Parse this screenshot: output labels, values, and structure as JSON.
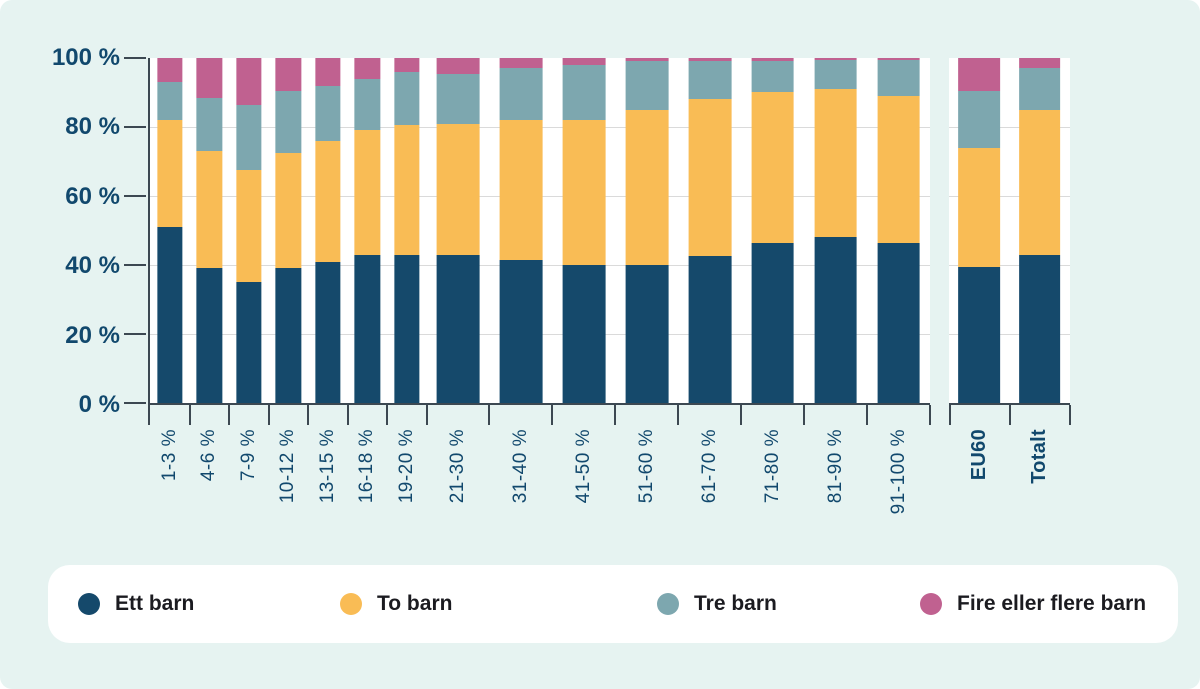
{
  "page": {
    "background_color": "#E6F3F1",
    "plot_background_color": "#FFFFFF"
  },
  "chart_data": {
    "type": "bar",
    "variant": "stacked-100-percent",
    "title": "",
    "xlabel": "",
    "ylabel": "",
    "ylim": [
      0,
      100
    ],
    "grid": "horizontal",
    "legend_position": "bottom",
    "y_ticks": [
      "100 %",
      "80 %",
      "60 %",
      "40 %",
      "20 %",
      "0 %"
    ],
    "categories": [
      "1-3 %",
      "4-6 %",
      "7-9 %",
      "10-12 %",
      "13-15 %",
      "16-18 %",
      "19-20 %",
      "21-30 %",
      "31-40 %",
      "41-50 %",
      "51-60 %",
      "61-70 %",
      "71-80 %",
      "81-90 %",
      "91-100 %"
    ],
    "extra_categories": [
      "EU60",
      "Totalt"
    ],
    "series": [
      {
        "name": "Ett barn",
        "color": "#15496B",
        "values": [
          51,
          39,
          35,
          39,
          41,
          43,
          43,
          43,
          41.5,
          40,
          40,
          42.5,
          46.5,
          48,
          46.5
        ],
        "extra_values": [
          39.5,
          43
        ]
      },
      {
        "name": "To barn",
        "color": "#F9BC55",
        "values": [
          31,
          34,
          32.5,
          33.5,
          35,
          36,
          37.5,
          38,
          40.5,
          42,
          45,
          45.5,
          43.5,
          43,
          42.5
        ],
        "extra_values": [
          34.5,
          42
        ]
      },
      {
        "name": "Tre barn",
        "color": "#7DA7AF",
        "values": [
          11,
          15.5,
          19,
          18,
          16,
          15,
          15.5,
          14.5,
          15.2,
          16,
          14,
          11.2,
          9.2,
          8.3,
          10.3
        ],
        "extra_values": [
          16.5,
          12
        ]
      },
      {
        "name": "Fire eller flere barn",
        "color": "#C06190",
        "values": [
          7,
          11.5,
          13.5,
          9.5,
          8,
          6,
          4,
          4.5,
          2.8,
          2,
          1,
          0.8,
          0.8,
          0.7,
          0.7
        ],
        "extra_values": [
          9.5,
          3
        ]
      }
    ]
  },
  "legend": {
    "items": [
      {
        "label": "Ett barn",
        "color": "#15496B"
      },
      {
        "label": "To barn",
        "color": "#F9BC55"
      },
      {
        "label": "Tre barn",
        "color": "#7DA7AF"
      },
      {
        "label": "Fire eller flere barn",
        "color": "#C06190"
      }
    ]
  }
}
